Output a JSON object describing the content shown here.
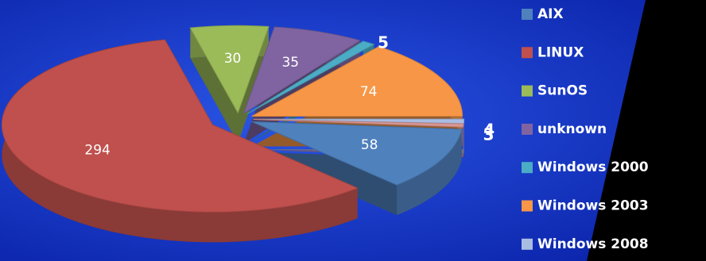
{
  "chart_data": {
    "type": "pie",
    "categories": [
      "AIX",
      "LINUX",
      "SunOS",
      "unknown",
      "Windows 2000",
      "Windows 2003",
      "Windows 2008",
      null
    ],
    "values": [
      58,
      294,
      30,
      35,
      5,
      74,
      4,
      3
    ],
    "colors": [
      "#4f81bd",
      "#c0504d",
      "#9bbb59",
      "#8064a2",
      "#4bacc6",
      "#f79646",
      "#a9bde3",
      "#d99694"
    ],
    "legend": "right"
  }
}
